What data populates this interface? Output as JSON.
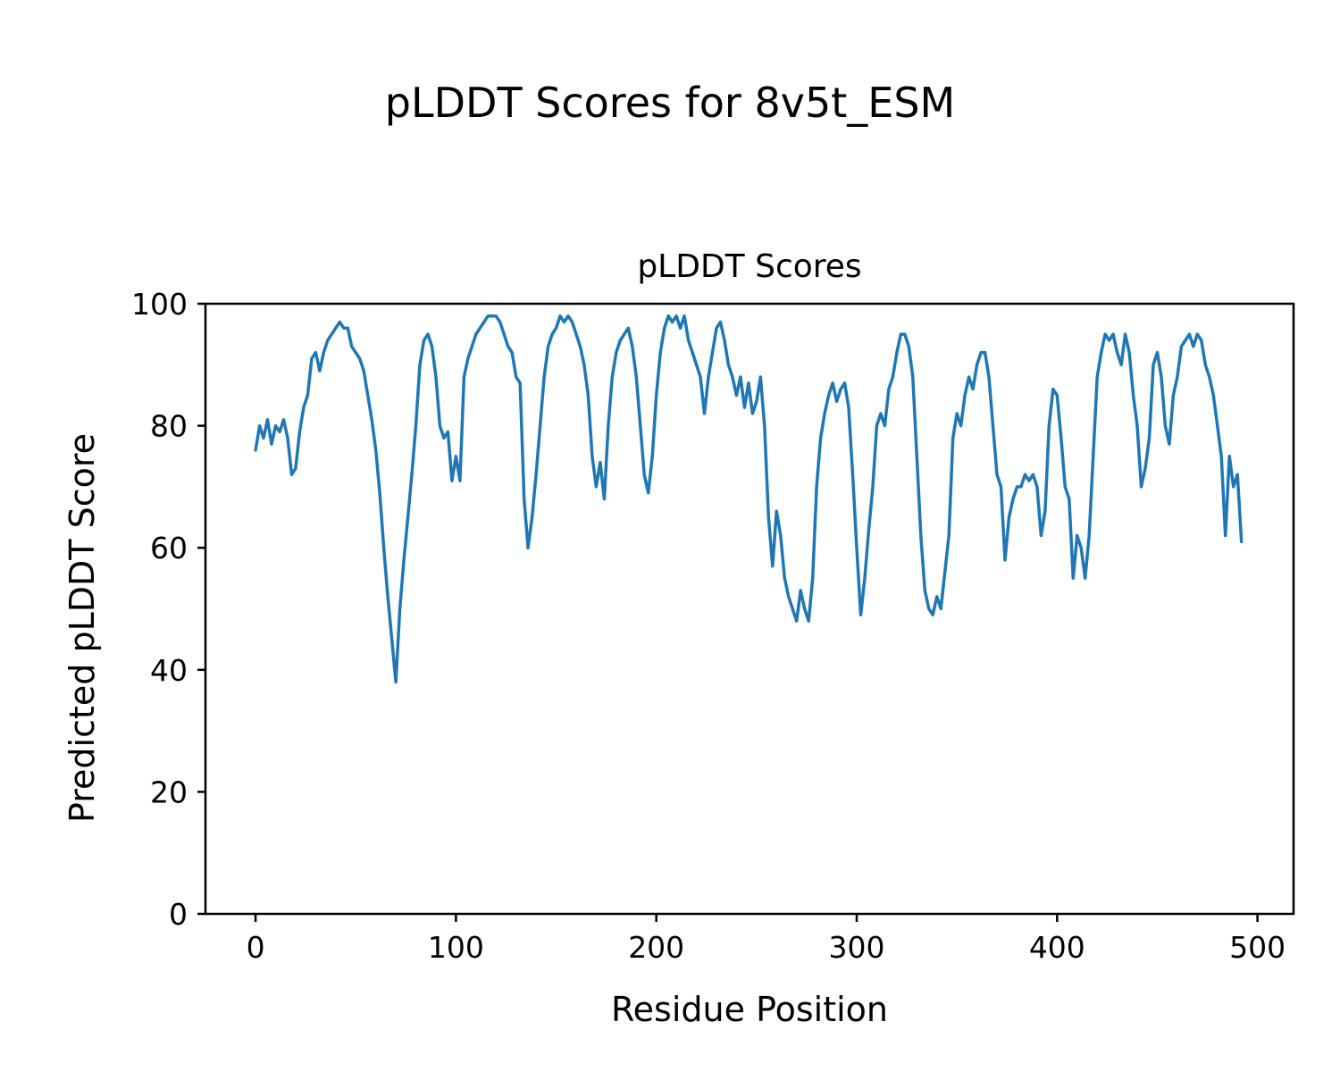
{
  "figure": {
    "suptitle": "pLDDT Scores for 8v5t_ESM"
  },
  "chart_data": {
    "type": "line",
    "title": "pLDDT Scores",
    "xlabel": "Residue Position",
    "ylabel": "Predicted pLDDT Score",
    "xlim": [
      -25,
      518
    ],
    "ylim": [
      0,
      100
    ],
    "xticks": [
      0,
      100,
      200,
      300,
      400,
      500
    ],
    "yticks": [
      0,
      20,
      40,
      60,
      80,
      100
    ],
    "grid": false,
    "legend": "none",
    "line_color": "#1f77b4",
    "line_width": 3.5,
    "series": [
      {
        "name": "pLDDT",
        "x_start": 0,
        "x_step": 2,
        "values": [
          76,
          80,
          78,
          81,
          77,
          80,
          79,
          81,
          78,
          72,
          73,
          79,
          83,
          85,
          91,
          92,
          89,
          92,
          94,
          95,
          96,
          97,
          96,
          96,
          93,
          92,
          91,
          89,
          85,
          81,
          76,
          69,
          60,
          52,
          45,
          38,
          50,
          58,
          65,
          72,
          80,
          90,
          94,
          95,
          93,
          88,
          80,
          78,
          79,
          71,
          75,
          71,
          88,
          91,
          93,
          95,
          96,
          97,
          98,
          98,
          98,
          97,
          95,
          93,
          92,
          88,
          87,
          68,
          60,
          65,
          72,
          80,
          88,
          93,
          95,
          96,
          98,
          97,
          98,
          97,
          95,
          93,
          90,
          85,
          75,
          70,
          74,
          68,
          80,
          88,
          92,
          94,
          95,
          96,
          93,
          88,
          80,
          72,
          69,
          75,
          85,
          92,
          96,
          98,
          97,
          98,
          96,
          98,
          94,
          92,
          90,
          88,
          82,
          88,
          92,
          96,
          97,
          94,
          90,
          88,
          85,
          88,
          83,
          87,
          82,
          84,
          88,
          80,
          65,
          57,
          66,
          62,
          55,
          52,
          50,
          48,
          53,
          50,
          48,
          55,
          70,
          78,
          82,
          85,
          87,
          84,
          86,
          87,
          83,
          72,
          60,
          49,
          55,
          63,
          70,
          80,
          82,
          80,
          86,
          88,
          92,
          95,
          95,
          93,
          88,
          75,
          62,
          53,
          50,
          49,
          52,
          50,
          56,
          62,
          78,
          82,
          80,
          85,
          88,
          86,
          90,
          92,
          92,
          88,
          80,
          72,
          70,
          58,
          65,
          68,
          70,
          70,
          72,
          71,
          72,
          70,
          62,
          66,
          80,
          86,
          85,
          78,
          70,
          68,
          55,
          62,
          60,
          55,
          62,
          75,
          88,
          92,
          95,
          94,
          95,
          92,
          90,
          95,
          92,
          85,
          80,
          70,
          73,
          78,
          90,
          92,
          88,
          80,
          77,
          85,
          88,
          93,
          94,
          95,
          93,
          95,
          94,
          90,
          88,
          85,
          80,
          75,
          62,
          75,
          70,
          72,
          61
        ]
      }
    ]
  }
}
